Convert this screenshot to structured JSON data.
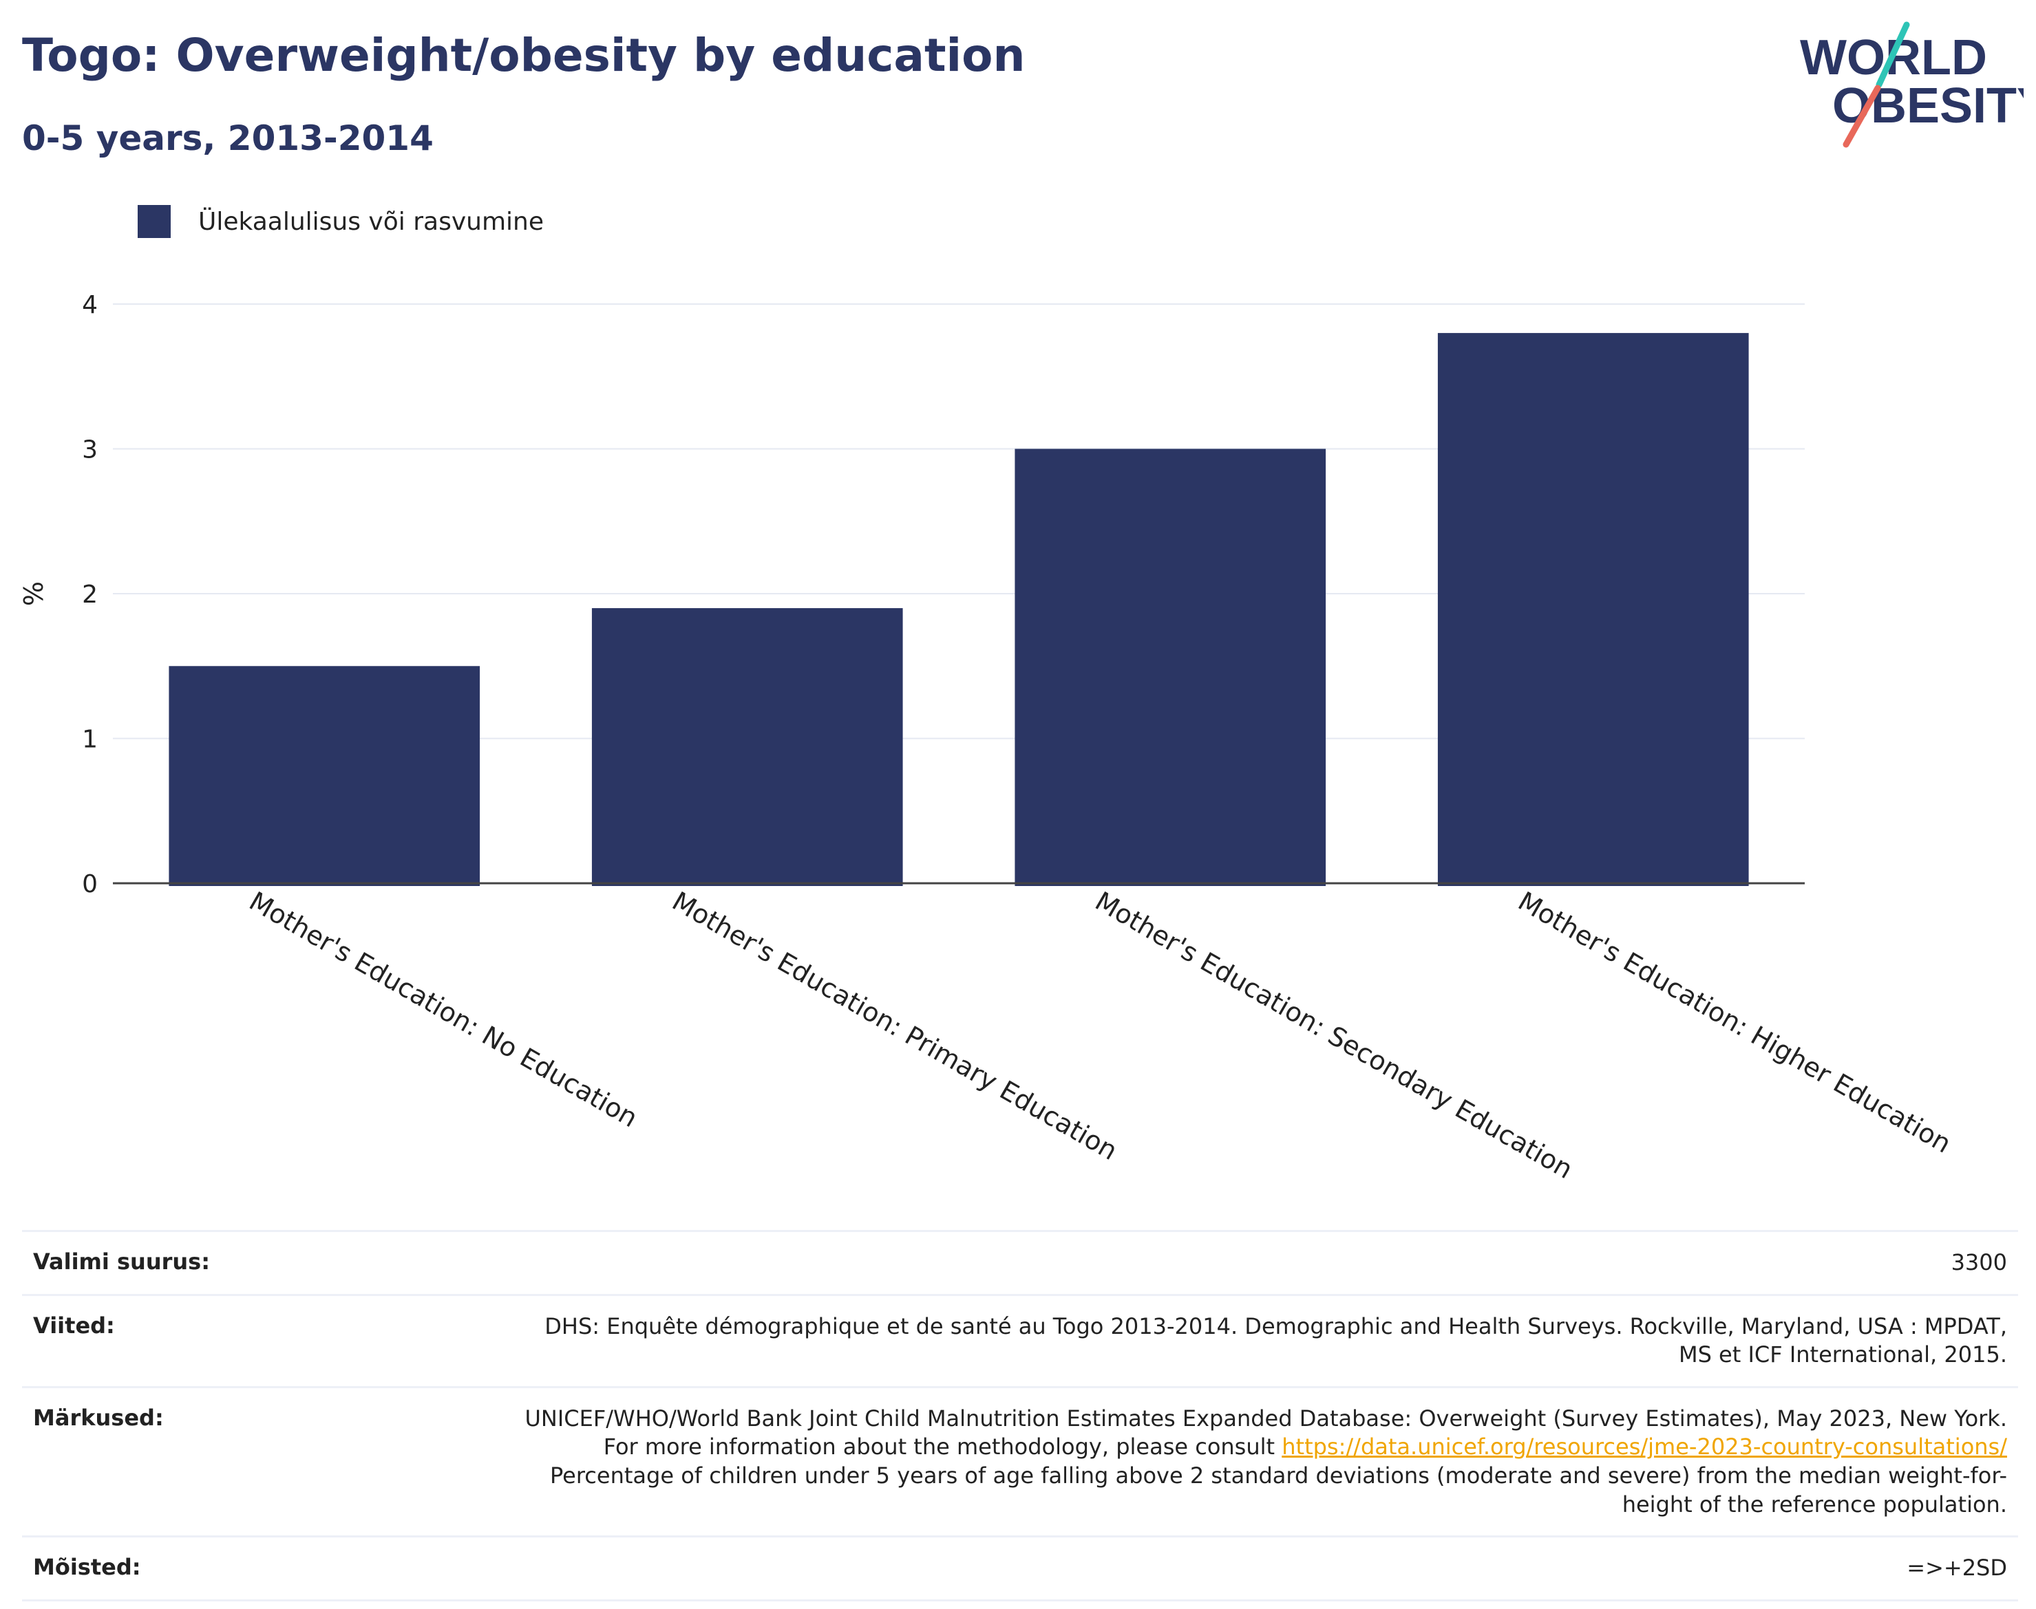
{
  "header": {
    "title": "Togo: Overweight/obesity by education",
    "subtitle": "0-5 years, 2013-2014"
  },
  "logo": {
    "line1": "WORLD",
    "line2": "OBESITY"
  },
  "colors": {
    "bar": "#2b3664",
    "title": "#2b3664",
    "link": "#f0a500",
    "logo_teal": "#2ec4b6",
    "logo_coral": "#e8685a"
  },
  "chart_data": {
    "type": "bar",
    "title": "Togo: Overweight/obesity by education",
    "subtitle": "0-5 years, 2013-2014",
    "categories": [
      "Mother's Education: No Education",
      "Mother's Education: Primary Education",
      "Mother's Education: Secondary Education",
      "Mother's Education: Higher Education"
    ],
    "series": [
      {
        "name": "Ülekaalulisus või rasvumine",
        "values": [
          1.5,
          1.9,
          3.0,
          3.8
        ]
      }
    ],
    "ylabel": "%",
    "xlabel": "",
    "ylim": [
      0,
      4
    ],
    "yticks": [
      0,
      1,
      2,
      3,
      4
    ],
    "grid": true,
    "legend_position": "top-left"
  },
  "info": {
    "sample_label": "Valimi suurus:",
    "sample_value": "3300",
    "refs_label": "Viited:",
    "refs_value": "DHS: Enquête démographique et de santé au Togo 2013-2014. Demographic and Health Surveys. Rockville, Maryland, USA : MPDAT, MS et ICF International, 2015.",
    "notes_label": "Märkused:",
    "notes_value_1": "UNICEF/WHO/World Bank Joint Child Malnutrition Estimates Expanded Database: Overweight (Survey Estimates), May 2023, New York. For more information about the methodology, please consult ",
    "notes_link": "https://data.unicef.org/resources/jme-2023-country-consultations/",
    "notes_value_2": " Percentage of children under 5 years of age falling above 2 standard deviations (moderate and severe) from the median weight-for-height of the reference population.",
    "defs_label": "Mõisted:",
    "defs_value": "=>+2SD"
  }
}
